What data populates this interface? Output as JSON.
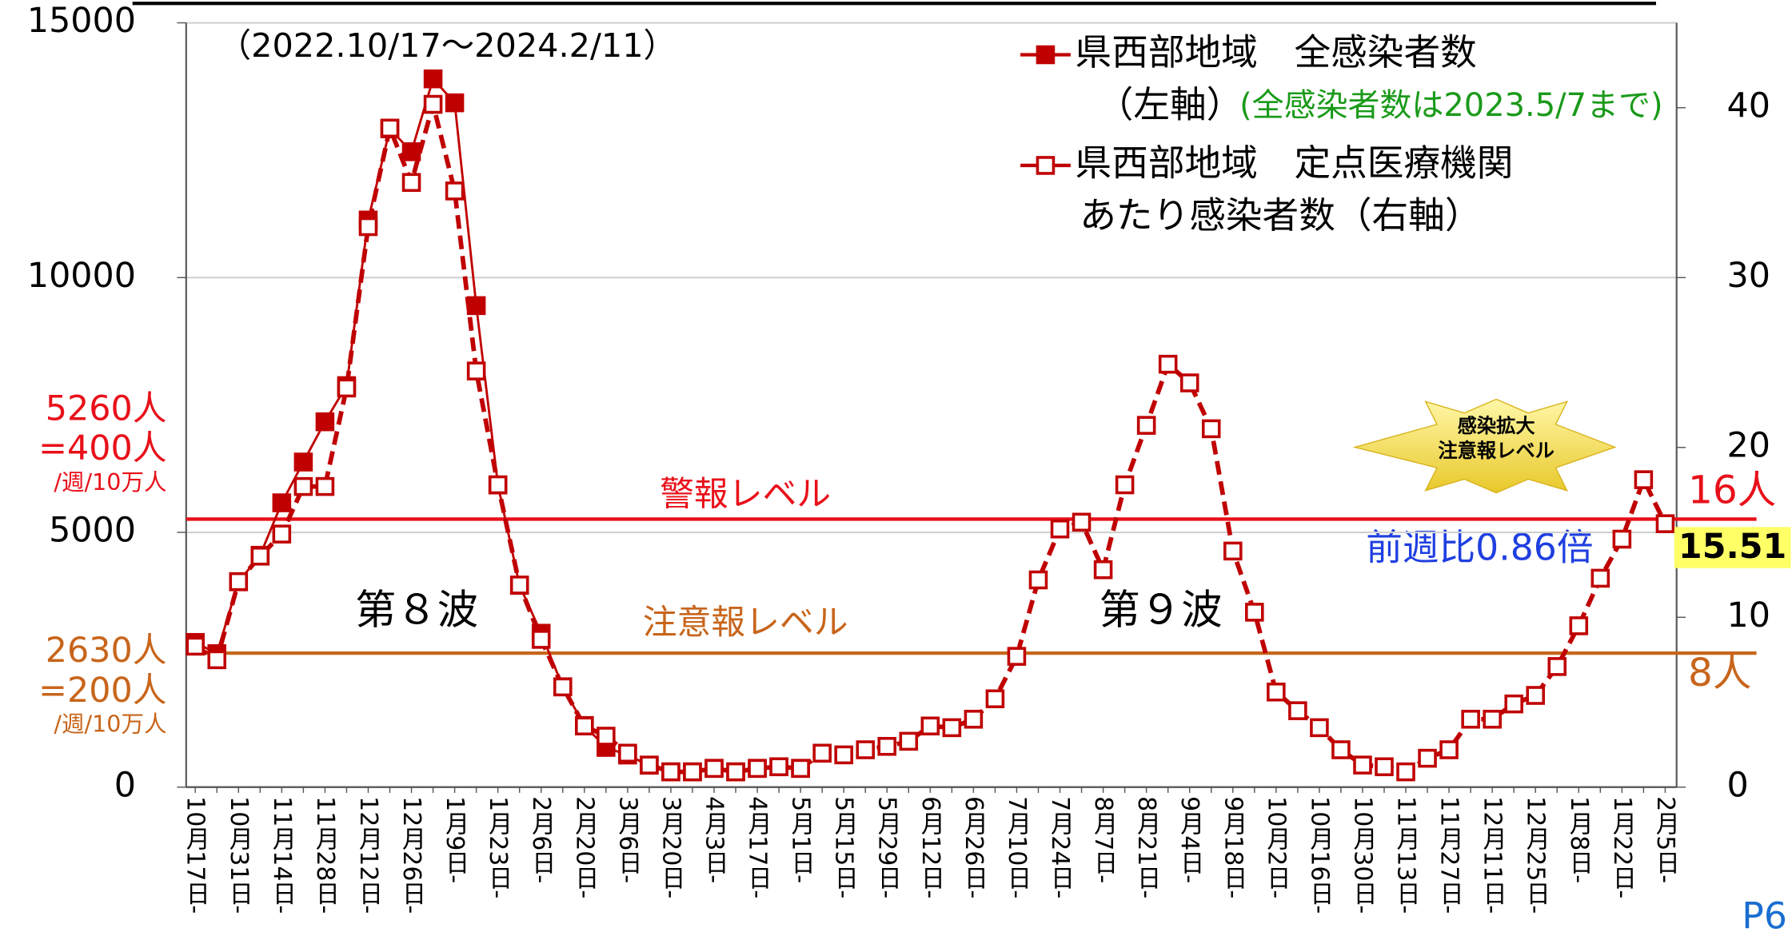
{
  "chart_data": {
    "type": "line",
    "subtitle": "（2022.10/17～2024.2/11）",
    "categories": [
      "10月17日-",
      null,
      "10月31日-",
      null,
      "11月14日-",
      null,
      "11月28日-",
      null,
      "12月12日-",
      null,
      "12月26日-",
      null,
      "1月9日-",
      null,
      "1月23日-",
      null,
      "2月6日-",
      null,
      "2月20日-",
      null,
      "3月6日-",
      null,
      "3月20日-",
      null,
      "4月3日-",
      null,
      "4月17日-",
      null,
      "5月1日-",
      null,
      "5月15日-",
      null,
      "5月29日-",
      null,
      "6月12日-",
      null,
      "6月26日-",
      null,
      "7月10日-",
      null,
      "7月24日-",
      null,
      "8月7日-",
      null,
      "8月21日-",
      null,
      "9月4日-",
      null,
      "9月18日-",
      null,
      "10月2日-",
      null,
      "10月16日-",
      null,
      "10月30日-",
      null,
      "11月13日-",
      null,
      "11月27日-",
      null,
      "12月11日-",
      null,
      "12月25日-",
      null,
      "1月8日-",
      null,
      "1月22日-",
      null,
      "2月5日-"
    ],
    "series": [
      {
        "name": "県西部地域　全感染者数",
        "note": "（左軸）",
        "note2": "(全感染者数は2023.5/7まで)",
        "color": "#c00000",
        "axis": "y",
        "marker": "filled",
        "dashed": false,
        "values": [
          2840,
          2620,
          4030,
          4550,
          5580,
          6380,
          7170,
          7880,
          11130,
          12920,
          12470,
          13900,
          13430,
          9450,
          5930,
          3960,
          3020,
          1970,
          1210,
          780,
          630,
          430,
          300,
          300,
          370,
          300,
          370,
          400,
          370,
          null,
          null,
          null,
          null,
          null,
          null,
          null,
          null,
          null,
          null,
          null,
          null,
          null,
          null,
          null,
          null,
          null,
          null,
          null,
          null,
          null,
          null,
          null,
          null,
          null,
          null,
          null,
          null,
          null,
          null,
          null,
          null,
          null,
          null,
          null,
          null,
          null,
          null,
          null,
          null
        ]
      },
      {
        "name": "県西部地域　定点医療機関",
        "note": "あたり感染者数（右軸）",
        "color": "#c00000",
        "axis": "y2",
        "marker": "open",
        "dashed": true,
        "values": [
          8.3,
          7.5,
          12.1,
          13.6,
          14.9,
          17.7,
          17.7,
          23.5,
          33.0,
          38.8,
          35.6,
          40.2,
          35.1,
          24.5,
          17.8,
          11.9,
          8.7,
          5.9,
          3.6,
          3.0,
          2.0,
          1.3,
          0.9,
          0.9,
          1.1,
          0.9,
          1.1,
          1.2,
          1.1,
          2.0,
          1.9,
          2.2,
          2.4,
          2.7,
          3.6,
          3.5,
          4.0,
          5.2,
          7.7,
          12.2,
          15.2,
          15.6,
          12.8,
          17.8,
          21.3,
          24.9,
          23.8,
          21.1,
          13.9,
          10.3,
          5.6,
          4.5,
          3.5,
          2.2,
          1.3,
          1.2,
          0.9,
          1.7,
          2.2,
          4.0,
          4.0,
          4.9,
          5.4,
          7.1,
          9.5,
          12.3,
          14.6,
          18.1,
          15.51
        ]
      }
    ],
    "ylim": [
      0,
      15000
    ],
    "yticks": [
      0,
      5000,
      10000,
      15000
    ],
    "y2lim": [
      0,
      45
    ],
    "y2ticks": [
      0,
      10,
      20,
      30,
      40
    ],
    "grid": true,
    "reference_lines": [
      {
        "value": 5260,
        "label": "警報レベル",
        "color": "#e8101a",
        "left_labels": [
          "5260人",
          "=400人",
          "/週/10万人"
        ],
        "right_label": "16人"
      },
      {
        "value": 2630,
        "label": "注意報レベル",
        "color": "#c8651b",
        "left_labels": [
          "2630人",
          "=200人",
          "/週/10万人"
        ],
        "right_label": "8人"
      }
    ],
    "annotations": {
      "wave8": "第８波",
      "wave9": "第９波",
      "ratio": "前週比0.86倍",
      "star": [
        "感染拡大",
        "注意報レベル"
      ],
      "page": "P6"
    }
  }
}
